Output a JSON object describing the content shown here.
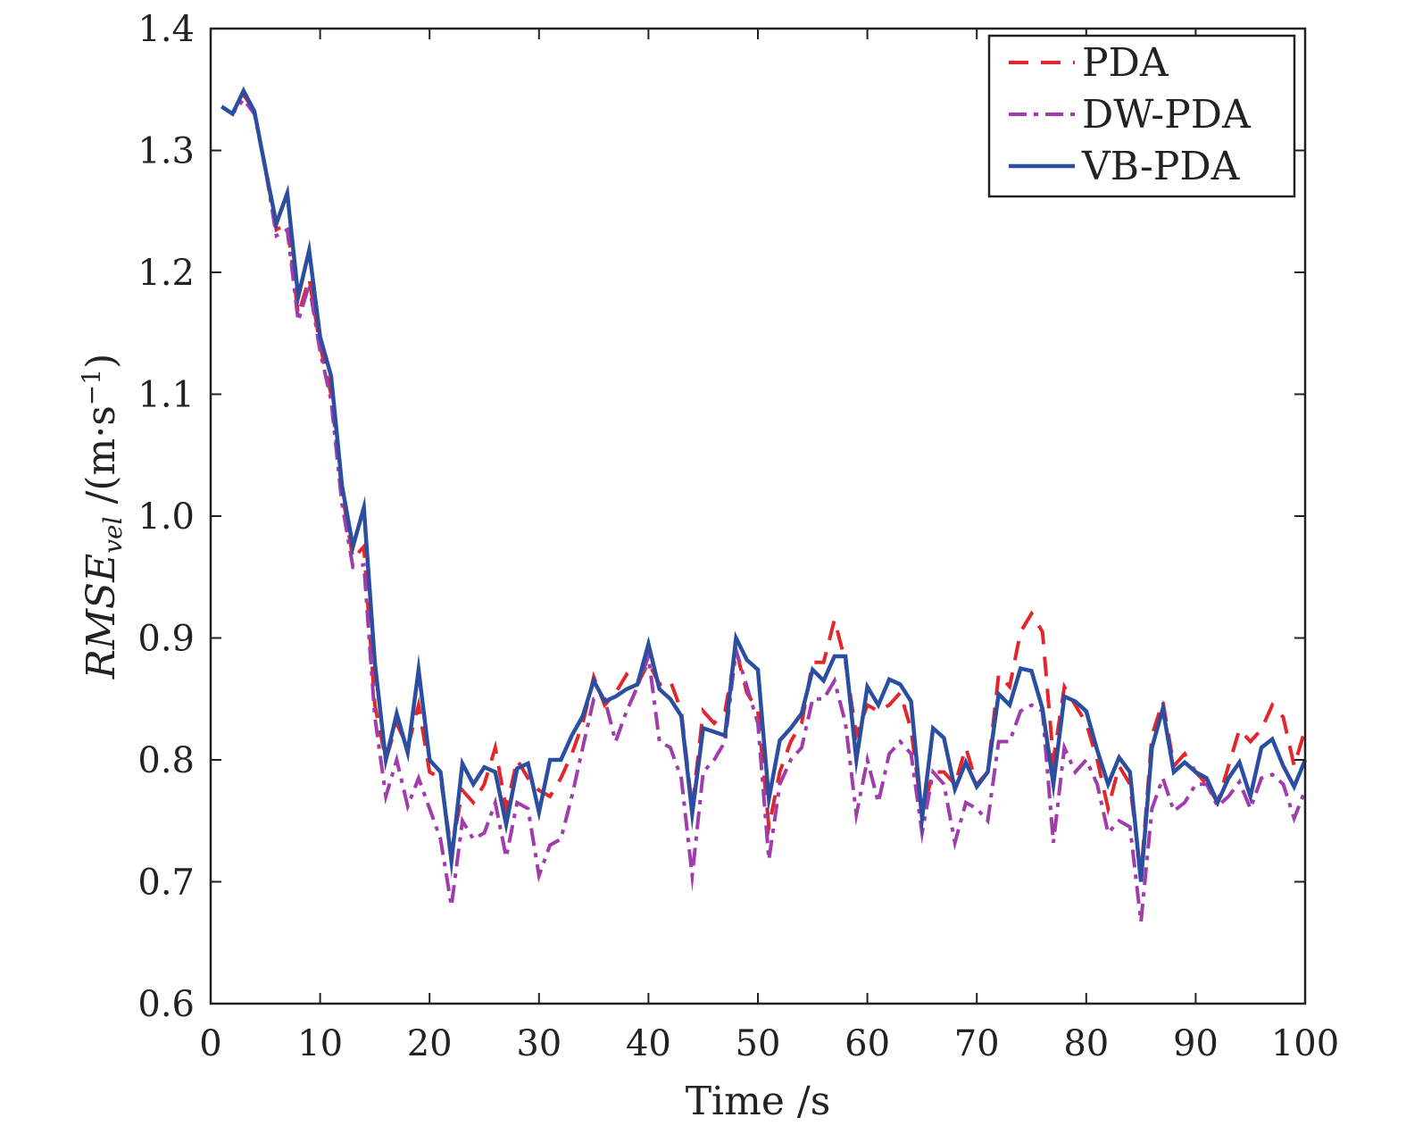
{
  "chart_data": {
    "type": "line",
    "xlabel": "Time /s",
    "ylabel": {
      "main": "RMSE",
      "subscript": "vel",
      "unit_open": " /(m·s",
      "unit_sup": "−1",
      "unit_close": ")"
    },
    "xlim": [
      0,
      100
    ],
    "ylim": [
      0.6,
      1.4
    ],
    "xticks": [
      "0",
      "10",
      "20",
      "30",
      "40",
      "50",
      "60",
      "70",
      "80",
      "90",
      "100"
    ],
    "yticks": [
      "0.6",
      "0.7",
      "0.8",
      "0.9",
      "1.0",
      "1.1",
      "1.2",
      "1.3",
      "1.4"
    ],
    "grid": false,
    "legend_position": "top-right",
    "series": [
      {
        "name": "PDA",
        "color": "#e3262b",
        "style": "dashed",
        "values": [
          1.336,
          1.33,
          1.346,
          1.332,
          1.286,
          1.235,
          1.24,
          1.165,
          1.195,
          1.14,
          1.1,
          1.02,
          0.965,
          0.975,
          0.845,
          0.8,
          0.83,
          0.81,
          0.845,
          0.79,
          0.785,
          0.725,
          0.775,
          0.765,
          0.78,
          0.81,
          0.76,
          0.8,
          0.785,
          0.775,
          0.77,
          0.785,
          0.805,
          0.83,
          0.868,
          0.845,
          0.855,
          0.87,
          0.862,
          0.88,
          0.862,
          0.865,
          0.84,
          0.76,
          0.84,
          0.83,
          0.84,
          0.89,
          0.855,
          0.84,
          0.745,
          0.79,
          0.815,
          0.83,
          0.88,
          0.88,
          0.915,
          0.88,
          0.82,
          0.845,
          0.84,
          0.845,
          0.855,
          0.825,
          0.755,
          0.79,
          0.79,
          0.78,
          0.81,
          0.78,
          0.79,
          0.87,
          0.86,
          0.905,
          0.92,
          0.905,
          0.8,
          0.86,
          0.845,
          0.83,
          0.8,
          0.76,
          0.795,
          0.78,
          0.705,
          0.82,
          0.848,
          0.795,
          0.805,
          0.79,
          0.78,
          0.765,
          0.795,
          0.825,
          0.815,
          0.825,
          0.845,
          0.835,
          0.795,
          0.825
        ]
      },
      {
        "name": "DW-PDA",
        "color": "#a03cab",
        "style": "dash-dot",
        "values": [
          1.336,
          1.33,
          1.342,
          1.33,
          1.285,
          1.23,
          1.235,
          1.16,
          1.19,
          1.135,
          1.095,
          1.01,
          0.958,
          0.96,
          0.835,
          0.77,
          0.8,
          0.762,
          0.785,
          0.76,
          0.735,
          0.68,
          0.75,
          0.735,
          0.74,
          0.765,
          0.72,
          0.765,
          0.76,
          0.705,
          0.73,
          0.735,
          0.77,
          0.81,
          0.85,
          0.85,
          0.815,
          0.84,
          0.86,
          0.885,
          0.815,
          0.81,
          0.785,
          0.705,
          0.79,
          0.8,
          0.815,
          0.89,
          0.86,
          0.83,
          0.718,
          0.78,
          0.8,
          0.81,
          0.85,
          0.85,
          0.865,
          0.83,
          0.755,
          0.8,
          0.765,
          0.805,
          0.815,
          0.805,
          0.74,
          0.79,
          0.78,
          0.732,
          0.765,
          0.76,
          0.75,
          0.815,
          0.815,
          0.84,
          0.845,
          0.84,
          0.732,
          0.81,
          0.79,
          0.8,
          0.78,
          0.74,
          0.75,
          0.745,
          0.667,
          0.76,
          0.785,
          0.758,
          0.765,
          0.78,
          0.78,
          0.762,
          0.77,
          0.782,
          0.76,
          0.785,
          0.788,
          0.78,
          0.752,
          0.775
        ]
      },
      {
        "name": "VB-PDA",
        "color": "#2b4ea0",
        "style": "solid",
        "values": [
          1.336,
          1.33,
          1.349,
          1.332,
          1.285,
          1.24,
          1.265,
          1.18,
          1.218,
          1.147,
          1.115,
          1.025,
          0.975,
          1.007,
          0.88,
          0.8,
          0.838,
          0.806,
          0.874,
          0.8,
          0.79,
          0.717,
          0.797,
          0.78,
          0.794,
          0.79,
          0.747,
          0.793,
          0.797,
          0.757,
          0.8,
          0.8,
          0.82,
          0.836,
          0.865,
          0.848,
          0.852,
          0.858,
          0.862,
          0.895,
          0.858,
          0.85,
          0.836,
          0.756,
          0.826,
          0.823,
          0.82,
          0.9,
          0.882,
          0.874,
          0.768,
          0.816,
          0.826,
          0.838,
          0.874,
          0.865,
          0.885,
          0.885,
          0.8,
          0.86,
          0.845,
          0.866,
          0.862,
          0.848,
          0.752,
          0.826,
          0.818,
          0.776,
          0.798,
          0.778,
          0.79,
          0.854,
          0.845,
          0.875,
          0.873,
          0.842,
          0.78,
          0.852,
          0.848,
          0.84,
          0.808,
          0.78,
          0.802,
          0.79,
          0.7,
          0.81,
          0.842,
          0.79,
          0.798,
          0.79,
          0.785,
          0.765,
          0.785,
          0.798,
          0.77,
          0.81,
          0.817,
          0.795,
          0.778,
          0.8
        ]
      }
    ]
  }
}
